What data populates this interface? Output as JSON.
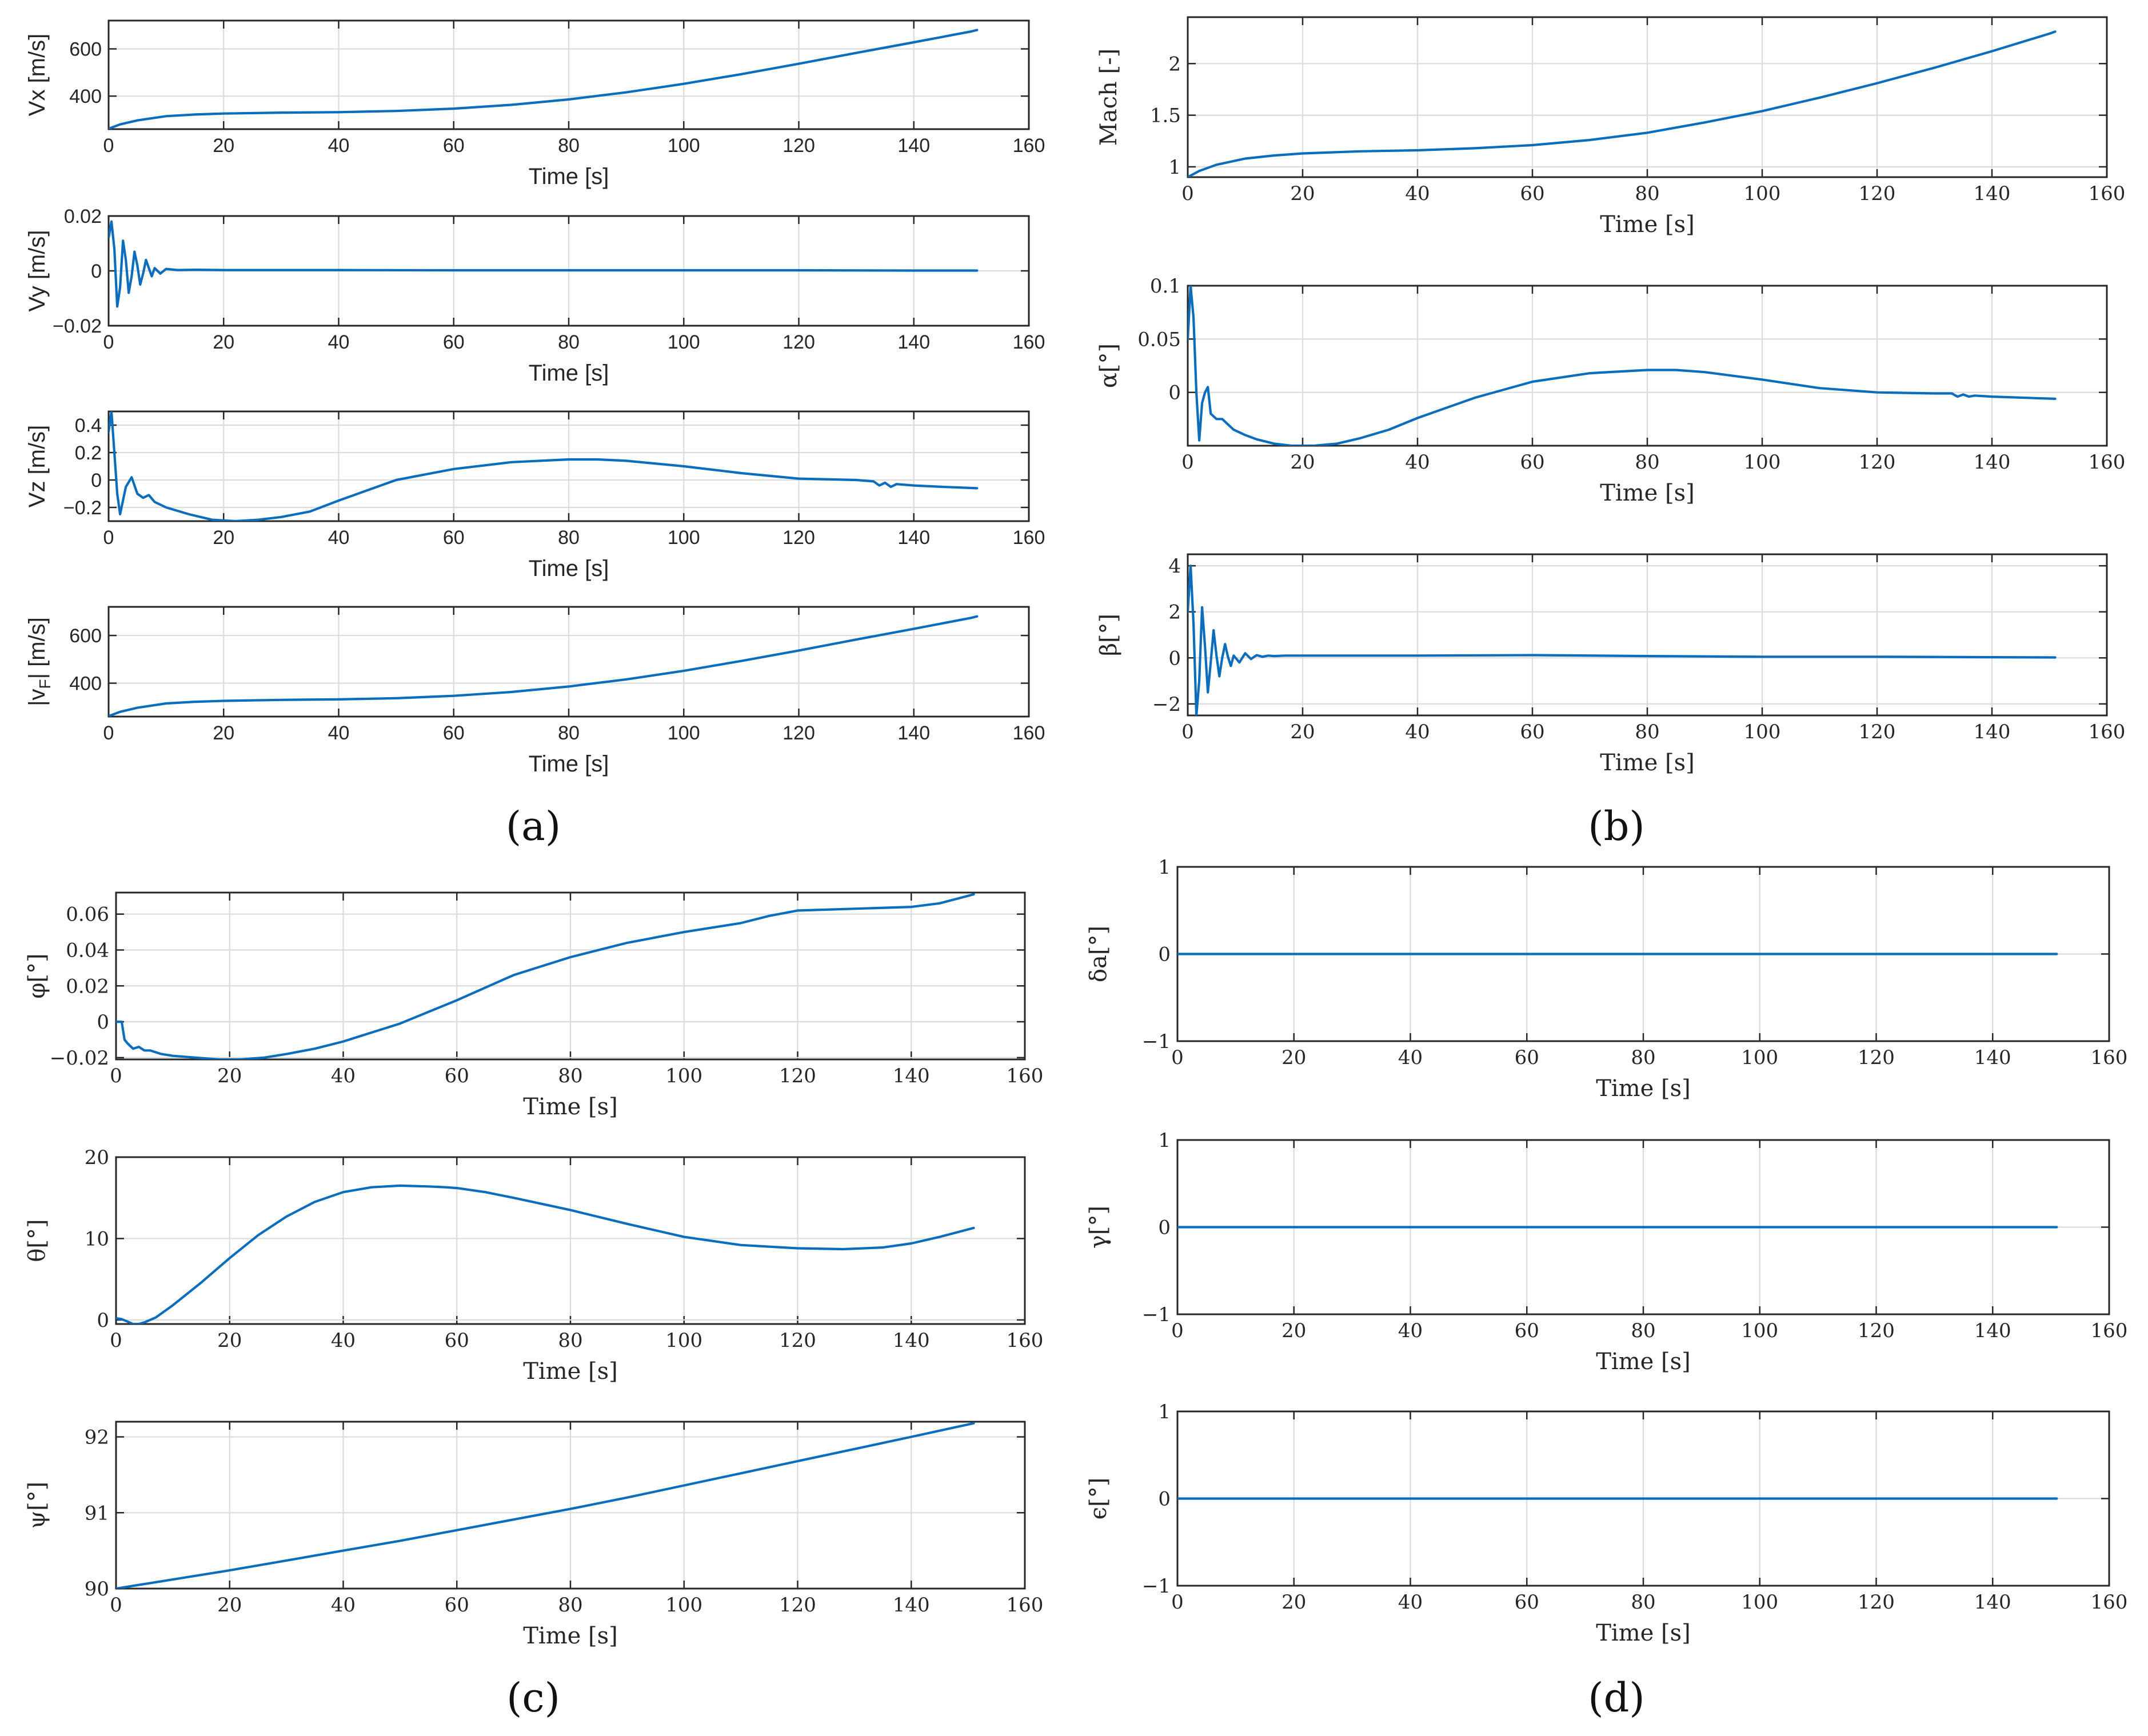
{
  "panels": [
    {
      "label": "(a)"
    },
    {
      "label": "(b)"
    },
    {
      "label": "(c)"
    },
    {
      "label": "(d)"
    }
  ],
  "chart_data": [
    {
      "type": "line",
      "panel": "(a)",
      "xlabel": "Time [s]",
      "ylabel": "Vx [m/s]",
      "ylabel_rich": {
        "base": "Vx [m/s]"
      },
      "xlim": [
        0,
        160
      ],
      "ylim": [
        260,
        720
      ],
      "xticks": [
        0,
        20,
        40,
        60,
        80,
        100,
        120,
        140,
        160
      ],
      "yticks": [
        400,
        600
      ],
      "x": [
        0,
        2,
        5,
        10,
        15,
        20,
        30,
        40,
        50,
        60,
        70,
        80,
        90,
        100,
        110,
        120,
        130,
        140,
        150,
        151
      ],
      "y": [
        262,
        280,
        297,
        315,
        322,
        326,
        330,
        332,
        337,
        347,
        363,
        386,
        416,
        452,
        493,
        537,
        583,
        628,
        674,
        680
      ]
    },
    {
      "type": "line",
      "panel": "(a)",
      "xlabel": "Time [s]",
      "ylabel": "Vy [m/s]",
      "ylabel_rich": {
        "base": "Vy [m/s]"
      },
      "xlim": [
        0,
        160
      ],
      "ylim": [
        -0.02,
        0.02
      ],
      "xticks": [
        0,
        20,
        40,
        60,
        80,
        100,
        120,
        140,
        160
      ],
      "yticks": [
        -0.02,
        0,
        0.02
      ],
      "x": [
        0,
        0.5,
        1,
        1.5,
        2,
        2.5,
        3,
        3.5,
        4,
        4.5,
        5,
        5.5,
        6,
        6.5,
        7,
        7.5,
        8,
        9,
        10,
        12,
        15,
        20,
        40,
        60,
        80,
        100,
        120,
        140,
        151
      ],
      "y": [
        0.012,
        0.018,
        0.008,
        -0.013,
        -0.006,
        0.011,
        0.004,
        -0.008,
        -0.002,
        0.007,
        0.002,
        -0.005,
        -0.001,
        0.004,
        0.001,
        -0.002,
        0.001,
        -0.001,
        0.0007,
        0.0003,
        0.0004,
        0.0003,
        0.0003,
        0.0002,
        0.0002,
        0.0002,
        0.0002,
        0.0001,
        0.0001
      ]
    },
    {
      "type": "line",
      "panel": "(a)",
      "xlabel": "Time [s]",
      "ylabel": "Vz [m/s]",
      "ylabel_rich": {
        "base": "Vz [m/s]"
      },
      "xlim": [
        0,
        160
      ],
      "ylim": [
        -0.3,
        0.5
      ],
      "xticks": [
        0,
        20,
        40,
        60,
        80,
        100,
        120,
        140,
        160
      ],
      "yticks": [
        -0.2,
        0,
        0.2,
        0.4
      ],
      "x": [
        0,
        0.5,
        1,
        1.5,
        2,
        3,
        4,
        5,
        6,
        7,
        8,
        10,
        14,
        18,
        22,
        26,
        30,
        35,
        40,
        50,
        60,
        70,
        80,
        85,
        90,
        100,
        110,
        120,
        130,
        133,
        134,
        135,
        136,
        137,
        140,
        145,
        151
      ],
      "y": [
        0.35,
        0.5,
        0.2,
        -0.1,
        -0.25,
        -0.05,
        0.02,
        -0.1,
        -0.13,
        -0.11,
        -0.16,
        -0.2,
        -0.25,
        -0.29,
        -0.3,
        -0.29,
        -0.27,
        -0.23,
        -0.15,
        0,
        0.08,
        0.13,
        0.15,
        0.15,
        0.14,
        0.1,
        0.05,
        0.01,
        0,
        -0.01,
        -0.04,
        -0.02,
        -0.05,
        -0.03,
        -0.04,
        -0.05,
        -0.06
      ]
    },
    {
      "type": "line",
      "panel": "(a)",
      "xlabel": "Time [s]",
      "ylabel": "|vF| [m/s]",
      "ylabel_rich": {
        "base": "|v",
        "sub": "F",
        "tail": "| [m/s]"
      },
      "xlim": [
        0,
        160
      ],
      "ylim": [
        260,
        720
      ],
      "xticks": [
        0,
        20,
        40,
        60,
        80,
        100,
        120,
        140,
        160
      ],
      "yticks": [
        400,
        600
      ],
      "x": [
        0,
        2,
        5,
        10,
        15,
        20,
        30,
        40,
        50,
        60,
        70,
        80,
        90,
        100,
        110,
        120,
        130,
        140,
        150,
        151
      ],
      "y": [
        262,
        280,
        297,
        315,
        322,
        326,
        330,
        332,
        337,
        347,
        363,
        386,
        416,
        452,
        493,
        537,
        583,
        628,
        674,
        680
      ]
    },
    {
      "type": "line",
      "panel": "(b)",
      "xlabel": "Time [s]",
      "ylabel": "Mach [-]",
      "serif": true,
      "xlim": [
        0,
        160
      ],
      "ylim": [
        0.9,
        2.45
      ],
      "xticks": [
        0,
        20,
        40,
        60,
        80,
        100,
        120,
        140,
        160
      ],
      "yticks": [
        1,
        1.5,
        2
      ],
      "x": [
        0,
        2,
        5,
        10,
        15,
        20,
        30,
        40,
        50,
        60,
        70,
        80,
        90,
        100,
        110,
        120,
        130,
        140,
        150,
        151
      ],
      "y": [
        0.9,
        0.96,
        1.02,
        1.08,
        1.11,
        1.13,
        1.15,
        1.16,
        1.18,
        1.21,
        1.26,
        1.33,
        1.43,
        1.54,
        1.67,
        1.81,
        1.96,
        2.12,
        2.29,
        2.31
      ]
    },
    {
      "type": "line",
      "panel": "(b)",
      "xlabel": "Time [s]",
      "ylabel": "α[°]",
      "serif": true,
      "xlim": [
        0,
        160
      ],
      "ylim": [
        -0.05,
        0.1
      ],
      "xticks": [
        0,
        20,
        40,
        60,
        80,
        100,
        120,
        140,
        160
      ],
      "yticks": [
        0,
        0.05,
        0.1
      ],
      "x": [
        0,
        0.5,
        1,
        1.5,
        2,
        2.5,
        3,
        3.5,
        4,
        5,
        6,
        7,
        8,
        10,
        12,
        15,
        18,
        20,
        22,
        26,
        30,
        35,
        40,
        50,
        60,
        70,
        80,
        85,
        90,
        100,
        110,
        120,
        130,
        133,
        134,
        135,
        136,
        137,
        140,
        151
      ],
      "y": [
        0.05,
        0.1,
        0.07,
        0.0,
        -0.045,
        -0.01,
        0.0,
        0.005,
        -0.02,
        -0.025,
        -0.025,
        -0.03,
        -0.035,
        -0.04,
        -0.044,
        -0.048,
        -0.05,
        -0.05,
        -0.05,
        -0.048,
        -0.043,
        -0.035,
        -0.024,
        -0.005,
        0.01,
        0.018,
        0.021,
        0.021,
        0.019,
        0.012,
        0.004,
        0.0,
        -0.001,
        -0.001,
        -0.004,
        -0.002,
        -0.004,
        -0.003,
        -0.004,
        -0.006
      ]
    },
    {
      "type": "line",
      "panel": "(b)",
      "xlabel": "Time [s]",
      "ylabel": "β[°]",
      "serif": true,
      "xlim": [
        0,
        160
      ],
      "ylim": [
        -2.5,
        4.5
      ],
      "xticks": [
        0,
        20,
        40,
        60,
        80,
        100,
        120,
        140,
        160
      ],
      "yticks": [
        -2,
        0,
        2,
        4
      ],
      "x": [
        0,
        0.5,
        1,
        1.5,
        2,
        2.5,
        3,
        3.5,
        4,
        4.5,
        5,
        5.5,
        6,
        6.5,
        7,
        7.5,
        8,
        9,
        10,
        11,
        12,
        13,
        14,
        15,
        17,
        20,
        40,
        60,
        80,
        100,
        120,
        140,
        151
      ],
      "y": [
        2,
        4,
        1.5,
        -2.5,
        -1,
        2.2,
        0.5,
        -1.5,
        -0.2,
        1.2,
        0.1,
        -0.8,
        0,
        0.6,
        0.05,
        -0.35,
        0.1,
        -0.2,
        0.2,
        -0.05,
        0.12,
        0.05,
        0.1,
        0.08,
        0.1,
        0.1,
        0.1,
        0.12,
        0.08,
        0.05,
        0.05,
        0.03,
        0.02
      ]
    },
    {
      "type": "line",
      "panel": "(c)",
      "xlabel": "Time [s]",
      "ylabel": "φ[°]",
      "serif": true,
      "xlim": [
        0,
        160
      ],
      "ylim": [
        -0.021,
        0.072
      ],
      "xticks": [
        0,
        20,
        40,
        60,
        80,
        100,
        120,
        140,
        160
      ],
      "yticks": [
        -0.02,
        0,
        0.02,
        0.04,
        0.06
      ],
      "x": [
        0,
        1,
        1.5,
        2,
        3,
        4,
        5,
        6,
        8,
        10,
        14,
        18,
        22,
        26,
        30,
        35,
        40,
        50,
        60,
        70,
        80,
        90,
        100,
        110,
        115,
        120,
        130,
        140,
        145,
        151
      ],
      "y": [
        0,
        0,
        -0.01,
        -0.012,
        -0.015,
        -0.014,
        -0.016,
        -0.016,
        -0.018,
        -0.019,
        -0.02,
        -0.021,
        -0.021,
        -0.02,
        -0.018,
        -0.015,
        -0.011,
        -0.001,
        0.012,
        0.026,
        0.036,
        0.044,
        0.05,
        0.055,
        0.059,
        0.062,
        0.063,
        0.064,
        0.066,
        0.071
      ]
    },
    {
      "type": "line",
      "panel": "(c)",
      "xlabel": "Time [s]",
      "ylabel": "θ[°]",
      "serif": true,
      "xlim": [
        0,
        160
      ],
      "ylim": [
        -0.5,
        20
      ],
      "xticks": [
        0,
        20,
        40,
        60,
        80,
        100,
        120,
        140,
        160
      ],
      "yticks": [
        0,
        10,
        20
      ],
      "x": [
        0,
        1,
        2,
        3,
        4,
        5,
        7,
        10,
        15,
        20,
        25,
        30,
        35,
        40,
        45,
        50,
        55,
        58,
        60,
        65,
        70,
        80,
        90,
        100,
        110,
        120,
        128,
        135,
        140,
        145,
        151
      ],
      "y": [
        0.2,
        0.1,
        -0.2,
        -0.5,
        -0.5,
        -0.3,
        0.3,
        1.8,
        4.6,
        7.6,
        10.4,
        12.7,
        14.5,
        15.7,
        16.3,
        16.5,
        16.4,
        16.3,
        16.2,
        15.7,
        15,
        13.5,
        11.8,
        10.2,
        9.2,
        8.8,
        8.7,
        8.9,
        9.4,
        10.2,
        11.3
      ]
    },
    {
      "type": "line",
      "panel": "(c)",
      "xlabel": "Time [s]",
      "ylabel": "ψ[°]",
      "serif": true,
      "xlim": [
        0,
        160
      ],
      "ylim": [
        90,
        92.2
      ],
      "xticks": [
        0,
        20,
        40,
        60,
        80,
        100,
        120,
        140,
        160
      ],
      "yticks": [
        90,
        91,
        92
      ],
      "x": [
        0,
        10,
        20,
        30,
        40,
        50,
        60,
        70,
        80,
        90,
        100,
        110,
        120,
        130,
        140,
        151
      ],
      "y": [
        90,
        90.12,
        90.24,
        90.37,
        90.5,
        90.63,
        90.77,
        90.91,
        91.05,
        91.2,
        91.36,
        91.52,
        91.68,
        91.84,
        92.0,
        92.18
      ]
    },
    {
      "type": "line",
      "panel": "(d)",
      "xlabel": "Time [s]",
      "ylabel": "δa[°]",
      "serif": true,
      "xlim": [
        0,
        160
      ],
      "ylim": [
        -1,
        1
      ],
      "xticks": [
        0,
        20,
        40,
        60,
        80,
        100,
        120,
        140,
        160
      ],
      "yticks": [
        -1,
        0,
        1
      ],
      "x": [
        0,
        151
      ],
      "y": [
        0,
        0
      ]
    },
    {
      "type": "line",
      "panel": "(d)",
      "xlabel": "Time [s]",
      "ylabel": "γ[°]",
      "serif": true,
      "xlim": [
        0,
        160
      ],
      "ylim": [
        -1,
        1
      ],
      "xticks": [
        0,
        20,
        40,
        60,
        80,
        100,
        120,
        140,
        160
      ],
      "yticks": [
        -1,
        0,
        1
      ],
      "x": [
        0,
        151
      ],
      "y": [
        0,
        0
      ]
    },
    {
      "type": "line",
      "panel": "(d)",
      "xlabel": "Time [s]",
      "ylabel": "ϵ[°]",
      "serif": true,
      "xlim": [
        0,
        160
      ],
      "ylim": [
        -1,
        1
      ],
      "xticks": [
        0,
        20,
        40,
        60,
        80,
        100,
        120,
        140,
        160
      ],
      "yticks": [
        -1,
        0,
        1
      ],
      "x": [
        0,
        151
      ],
      "y": [
        0,
        0
      ]
    }
  ]
}
